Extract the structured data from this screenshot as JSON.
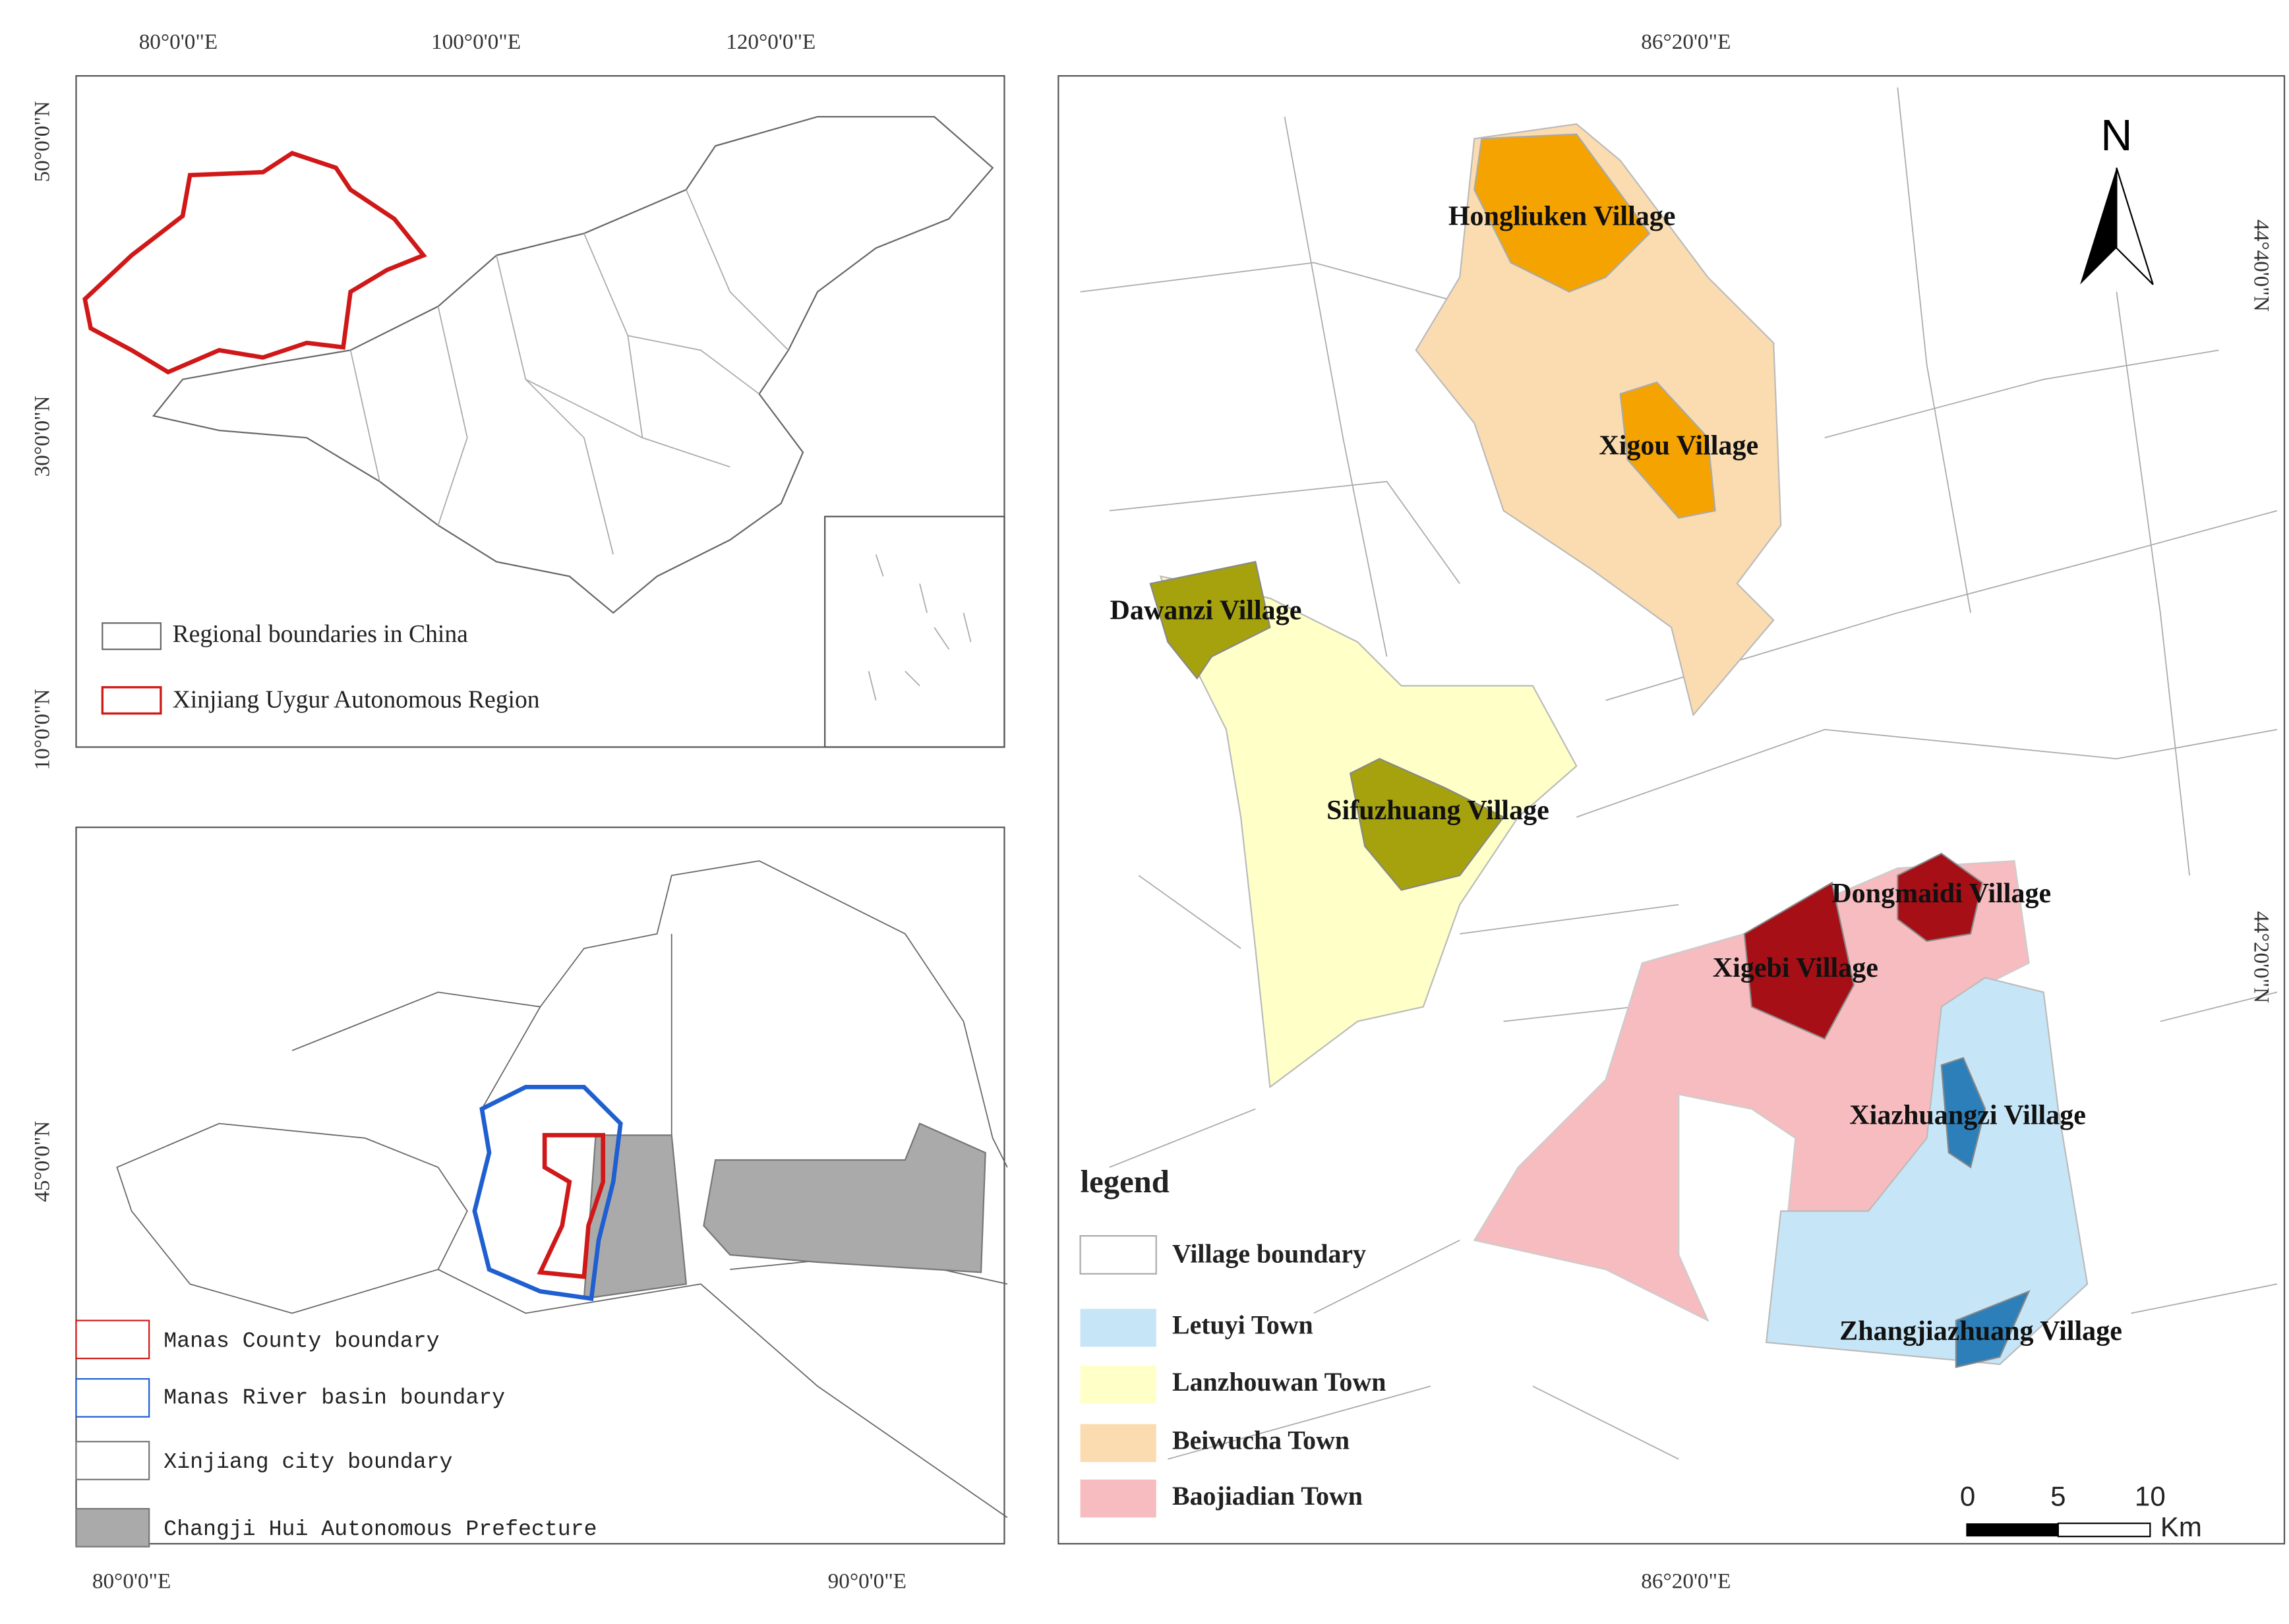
{
  "china_map": {
    "x_ticks": [
      "80°0'0\"E",
      "100°0'0\"E",
      "120°0'0\"E"
    ],
    "y_ticks": [
      "50°0'0\"N",
      "30°0'0\"N",
      "10°0'0\"N"
    ],
    "legend": [
      "Regional boundaries in China",
      "Xinjiang Uygur Autonomous Region"
    ]
  },
  "manas_map": {
    "x_ticks": [
      "80°0'0\"E",
      "90°0'0\"E"
    ],
    "y_ticks": [
      "45°0'0\"N"
    ],
    "legend": [
      "Manas County boundary",
      "Manas River basin boundary",
      "Xinjiang city boundary",
      "Changji Hui Autonomous Prefecture"
    ]
  },
  "study_map": {
    "top_tick": "86°20'0\"E",
    "bottom_tick": "86°20'0\"E",
    "y_ticks": [
      "44°40'0\"N",
      "44°20'0\"N"
    ],
    "north": "N",
    "villages": [
      "Hongliuken Village",
      "Xigou Village",
      "Dawanzi Village",
      "Sifuzhuang Village",
      "Dongmaidi Village",
      "Xigebi Village",
      "Xiazhuangzi Village",
      "Zhangjiazhuang Village"
    ],
    "legend_title": "legend",
    "legend": [
      "Village boundary",
      "Letuyi Town",
      "Lanzhouwan Town",
      "Beiwucha Town",
      "Baojiadian Town"
    ],
    "scale": [
      "0",
      "5",
      "10"
    ],
    "scale_unit": "Km"
  }
}
